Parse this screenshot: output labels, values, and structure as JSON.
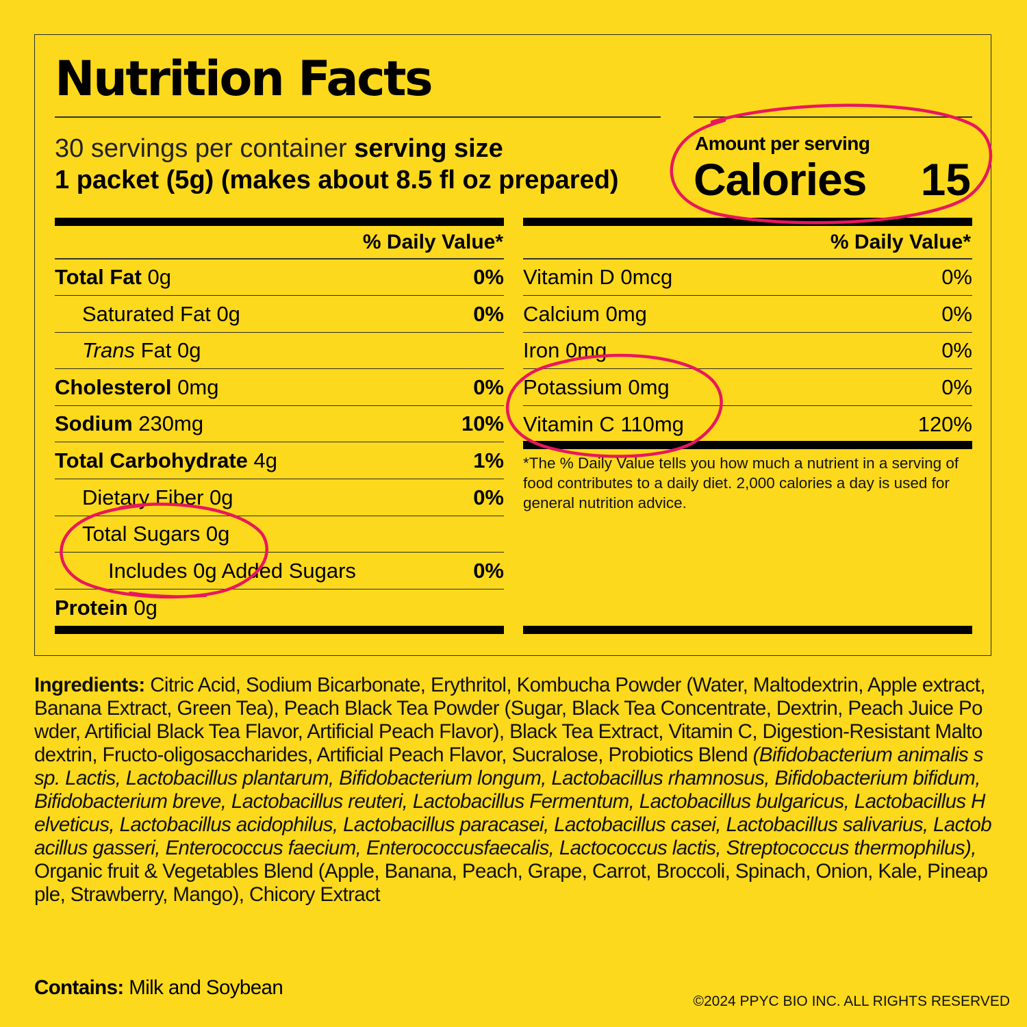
{
  "title": "Nutrition Facts",
  "serving": {
    "servings_text": "30 servings per container",
    "serving_size_label": "serving size",
    "serving_size_value": "1 packet (5g) (makes about 8.5 fl oz prepared)"
  },
  "calories": {
    "amount_label": "Amount per serving",
    "label": "Calories",
    "value": "15"
  },
  "daily_value_header": "% Daily Value*",
  "left_table": [
    {
      "bold": "Total Fat",
      "text": " 0g",
      "pct": "0%"
    },
    {
      "bold": "",
      "text": "Saturated Fat 0g",
      "pct": "0%"
    },
    {
      "italic": "Trans",
      "text": " Fat 0g",
      "pct": ""
    },
    {
      "bold": "Cholesterol",
      "text": " 0mg",
      "pct": "0%"
    },
    {
      "bold": "Sodium",
      "text": " 230mg",
      "pct": "10%"
    },
    {
      "bold": "Total Carbohydrate",
      "text": " 4g",
      "pct": "1%"
    },
    {
      "bold": "",
      "text": "Dietary Fiber 0g",
      "pct": "0%"
    },
    {
      "bold": "",
      "text": "Total Sugars 0g",
      "pct": ""
    },
    {
      "bold": "",
      "text": "Includes 0g Added Sugars",
      "pct": "0%"
    },
    {
      "bold": "Protein",
      "text": " 0g",
      "pct": ""
    }
  ],
  "right_table": [
    {
      "text": "Vitamin D 0mcg",
      "pct": "0%"
    },
    {
      "text": "Calcium 0mg",
      "pct": "0%"
    },
    {
      "text": "Iron 0mg",
      "pct": "0%"
    },
    {
      "text": "Potassium 0mg",
      "pct": "0%"
    },
    {
      "text": "Vitamin C 110mg",
      "pct": "120%"
    }
  ],
  "footnote": "*The % Daily Value tells you how much a nutrient in a serving of food contributes to a daily diet. 2,000 calories a day is used for general nutrition advice.",
  "ingredients": {
    "label": "Ingredients:",
    "text_plain": " Citric Acid, Sodium Bicarbonate, Erythritol, Kombucha Powder (Water, Maltodextrin, Apple extract, Banana Extract, Green Tea), Peach Black Tea Powder (Sugar, Black Tea Concentrate, Dextrin, Peach Juice Powder, Artificial Black Tea Flavor, Artificial Peach Flavor), Black Tea Extract, Vitamin C, Digestion-Resistant Maltodextrin, Fructo-oligosaccharides, Artificial Peach Flavor, Sucralose, Probiotics Blend ",
    "text_italic": "(Bifidobacterium animalis ssp. Lactis, Lactobacillus plantarum, Bifidobacterium longum, Lactobacillus rhamnosus, Bifidobacterium bifidum, Bifidobacterium breve, Lactobacillus reuteri, Lactobacillus Fermentum, Lactobacillus bulgaricus, Lactobacillus Helveticus, Lactobacillus acidophilus, Lactobacillus paracasei, Lactobacillus casei, Lactobacillus salivarius, Lactobacillus gasseri, Enterococcus faecium, Enterococcusfaecalis, Lactococcus lactis, Streptococcus thermophilus),",
    "text_end": " Organic fruit & Vegetables Blend (Apple, Banana, Peach, Grape, Carrot, Broccoli, Spinach, Onion, Kale, Pineapple, Strawberry, Mango), Chicory Extract"
  },
  "contains": {
    "label": "Contains:",
    "text": " Milk and Soybean"
  },
  "copyright": "©2024 PPYC BIO INC. ALL RIGHTS RESERVED",
  "colors": {
    "background": "#FCD91C",
    "highlight_circle": "#E8175D"
  }
}
